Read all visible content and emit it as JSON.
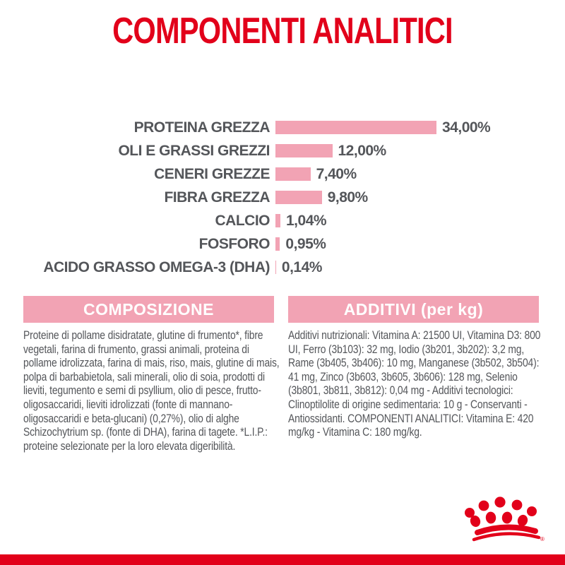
{
  "page": {
    "title": "COMPONENTI ANALITICI",
    "colors": {
      "red": "#e2001a",
      "pink": "#f2a3b4",
      "gray": "#54565a"
    }
  },
  "chart_data": {
    "type": "bar",
    "orientation": "horizontal",
    "title": "COMPONENTI ANALITICI",
    "categories": [
      "PROTEINA GREZZA",
      "OLI E GRASSI GREZZI",
      "CENERI GREZZE",
      "FIBRA GREZZA",
      "CALCIO",
      "FOSFORO",
      "ACIDO GRASSO OMEGA-3 (DHA)"
    ],
    "values": [
      34.0,
      12.0,
      7.4,
      9.8,
      1.04,
      0.95,
      0.14
    ],
    "value_labels": [
      "34,00%",
      "12,00%",
      "7,40%",
      "9,80%",
      "1,04%",
      "0,95%",
      "0,14%"
    ],
    "unit": "%",
    "xlim": [
      0,
      34
    ],
    "bar_color": "#f2a3b4",
    "grid": false,
    "legend": false
  },
  "sections": {
    "composizione": {
      "header": "COMPOSIZIONE",
      "body": "Proteine di pollame disidratate, glutine di frumento*, fibre vegetali, farina di frumento, grassi animali, proteina di pollame idrolizzata, farina di mais, riso, mais, glutine di mais, polpa di barbabietola, sali minerali, olio di soia, prodotti di lieviti, tegumento e semi di psyllium, olio di pesce, frutto-oligosaccaridi, lieviti idrolizzati (fonte di mannano-oligosaccaridi e beta-glucani) (0,27%), olio di alghe Schizochytrium sp. (fonte di DHA), farina di tagete. *L.I.P.: proteine selezionate per la loro elevata digeribilità."
    },
    "additivi": {
      "header": "ADDITIVI (per kg)",
      "body": "Additivi nutrizionali: Vitamina A: 21500 UI, Vitamina D3: 800 UI, Ferro (3b103): 32 mg, Iodio (3b201, 3b202): 3,2 mg, Rame (3b405, 3b406): 10 mg, Manganese (3b502, 3b504): 41 mg, Zinco (3b603, 3b605, 3b606): 128 mg, Selenio (3b801, 3b811, 3b812): 0,04 mg - Additivi tecnologici: Clinoptilolite di origine sedimentaria: 10 g - Conservanti - Antiossidanti. COMPONENTI ANALITICI: Vitamina E: 420 mg/kg - Vitamina C: 180 mg/kg."
    }
  },
  "footer": {
    "logo_icon": "royal-canin-crown-paw-logo",
    "registered_mark": "®"
  }
}
